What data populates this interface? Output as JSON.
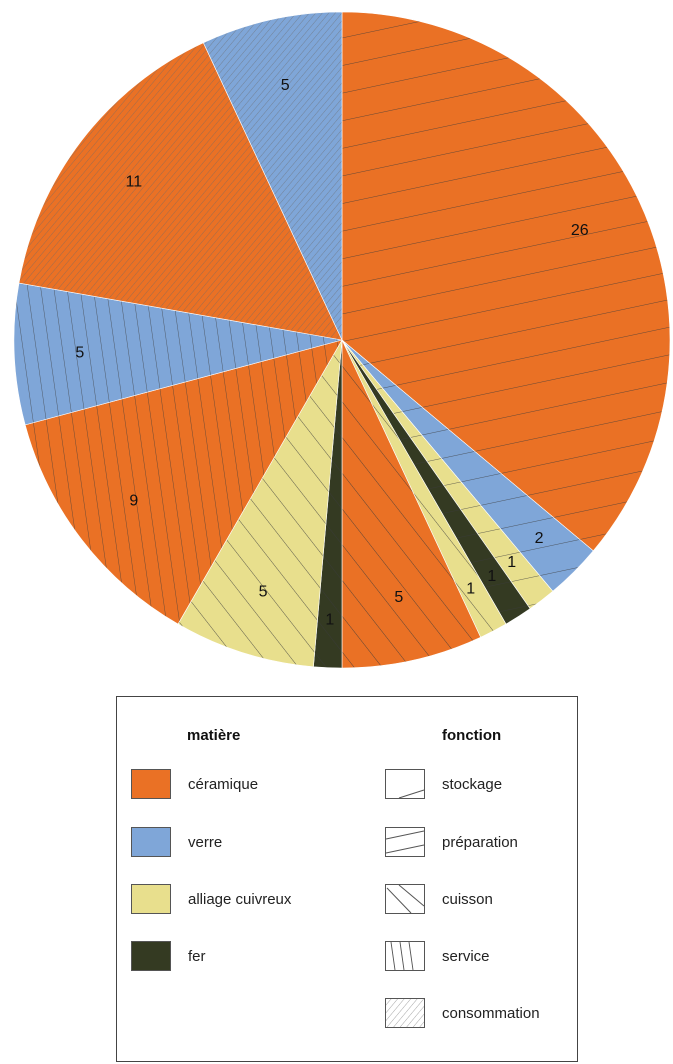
{
  "chart_data": {
    "type": "pie",
    "start_angle_deg": 0,
    "direction": "clockwise",
    "slices": [
      {
        "value": 26,
        "matiere": "céramique",
        "fonction": "préparation"
      },
      {
        "value": 2,
        "matiere": "verre",
        "fonction": "préparation"
      },
      {
        "value": 1,
        "matiere": "alliage cuivreux",
        "fonction": "préparation"
      },
      {
        "value": 1,
        "matiere": "fer",
        "fonction": "préparation"
      },
      {
        "value": 1,
        "matiere": "alliage cuivreux",
        "fonction": "cuisson"
      },
      {
        "value": 5,
        "matiere": "céramique",
        "fonction": "cuisson"
      },
      {
        "value": 1,
        "matiere": "fer",
        "fonction": "cuisson"
      },
      {
        "value": 5,
        "matiere": "alliage cuivreux",
        "fonction": "cuisson"
      },
      {
        "value": 9,
        "matiere": "céramique",
        "fonction": "service"
      },
      {
        "value": 5,
        "matiere": "verre",
        "fonction": "service"
      },
      {
        "value": 11,
        "matiere": "céramique",
        "fonction": "consommation"
      },
      {
        "value": 5,
        "matiere": "verre",
        "fonction": "consommation"
      }
    ],
    "legend_position": "bottom"
  },
  "legend": {
    "matiere_title": "matière",
    "fonction_title": "fonction",
    "matieres": [
      {
        "label": "céramique",
        "color": "#ea7125"
      },
      {
        "label": "verre",
        "color": "#7fa6d8"
      },
      {
        "label": "alliage cuivreux",
        "color": "#e8df8d"
      },
      {
        "label": "fer",
        "color": "#343a22"
      }
    ],
    "fonctions": [
      {
        "label": "stockage",
        "pattern": "stockage"
      },
      {
        "label": "préparation",
        "pattern": "preparation"
      },
      {
        "label": "cuisson",
        "pattern": "cuisson"
      },
      {
        "label": "service",
        "pattern": "service"
      },
      {
        "label": "consommation",
        "pattern": "consommation"
      }
    ]
  }
}
